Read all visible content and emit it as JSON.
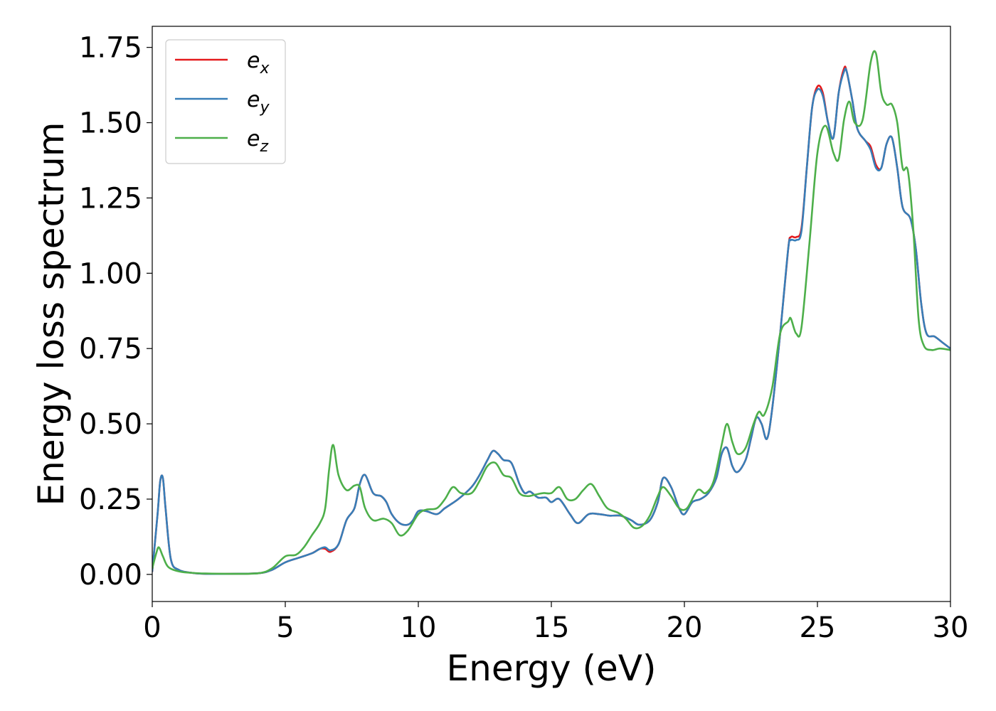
{
  "chart_data": {
    "type": "line",
    "title": "",
    "xlabel": "Energy (eV)",
    "ylabel": "Energy loss spectrum",
    "xlim": [
      0,
      30
    ],
    "ylim": [
      -0.09,
      1.82
    ],
    "xticks": [
      0,
      5,
      10,
      15,
      20,
      25,
      30
    ],
    "xtick_labels": [
      "0",
      "5",
      "10",
      "15",
      "20",
      "25",
      "30"
    ],
    "yticks": [
      0,
      0.25,
      0.5,
      0.75,
      1.0,
      1.25,
      1.5,
      1.75
    ],
    "ytick_labels": [
      "0.00",
      "0.25",
      "0.50",
      "0.75",
      "1.00",
      "1.25",
      "1.50",
      "1.75"
    ],
    "grid": false,
    "legend_position": "top-left",
    "series": [
      {
        "name": "e_x",
        "label_base": "e",
        "label_sub": "x",
        "color": "#e41a1c",
        "x": [
          0,
          0.2,
          0.3,
          0.4,
          0.5,
          0.7,
          1.0,
          1.5,
          2.0,
          3.0,
          4.0,
          4.5,
          5.0,
          5.5,
          6.0,
          6.3,
          6.5,
          6.7,
          7.0,
          7.3,
          7.6,
          7.8,
          8.0,
          8.3,
          8.6,
          8.8,
          9.0,
          9.3,
          9.6,
          9.8,
          10.0,
          10.3,
          10.7,
          11.0,
          11.5,
          12.0,
          12.3,
          12.6,
          12.8,
          13.0,
          13.2,
          13.5,
          13.8,
          14.0,
          14.2,
          14.5,
          14.8,
          15.0,
          15.3,
          15.7,
          16.0,
          16.4,
          16.8,
          17.2,
          17.6,
          18.0,
          18.3,
          18.7,
          19.0,
          19.2,
          19.5,
          19.8,
          20.0,
          20.3,
          20.6,
          20.9,
          21.2,
          21.4,
          21.6,
          21.8,
          22.0,
          22.3,
          22.5,
          22.7,
          22.9,
          23.1,
          23.3,
          23.6,
          23.9,
          24.0,
          24.2,
          24.4,
          24.6,
          24.8,
          25.0,
          25.2,
          25.4,
          25.6,
          25.8,
          26.0,
          26.1,
          26.3,
          26.5,
          26.8,
          27.0,
          27.2,
          27.4,
          27.6,
          27.8,
          28.0,
          28.2,
          28.5,
          28.7,
          28.9,
          29.1,
          29.4,
          29.7,
          30.0
        ],
        "y": [
          0.01,
          0.2,
          0.31,
          0.32,
          0.22,
          0.05,
          0.015,
          0.005,
          0.002,
          0.002,
          0.004,
          0.015,
          0.04,
          0.055,
          0.07,
          0.085,
          0.085,
          0.075,
          0.1,
          0.18,
          0.22,
          0.3,
          0.33,
          0.27,
          0.26,
          0.24,
          0.2,
          0.17,
          0.165,
          0.18,
          0.21,
          0.21,
          0.2,
          0.22,
          0.25,
          0.29,
          0.33,
          0.38,
          0.41,
          0.4,
          0.38,
          0.37,
          0.3,
          0.27,
          0.275,
          0.255,
          0.255,
          0.24,
          0.25,
          0.2,
          0.17,
          0.2,
          0.2,
          0.195,
          0.195,
          0.18,
          0.165,
          0.18,
          0.24,
          0.32,
          0.29,
          0.22,
          0.2,
          0.24,
          0.25,
          0.27,
          0.32,
          0.4,
          0.42,
          0.36,
          0.34,
          0.38,
          0.45,
          0.52,
          0.5,
          0.45,
          0.55,
          0.8,
          1.08,
          1.12,
          1.12,
          1.15,
          1.35,
          1.55,
          1.62,
          1.6,
          1.5,
          1.45,
          1.6,
          1.68,
          1.67,
          1.58,
          1.48,
          1.44,
          1.42,
          1.36,
          1.35,
          1.43,
          1.45,
          1.35,
          1.22,
          1.18,
          1.08,
          0.9,
          0.8,
          0.79,
          0.77,
          0.75
        ]
      },
      {
        "name": "e_y",
        "label_base": "e",
        "label_sub": "y",
        "color": "#377eb8",
        "x": [
          0,
          0.2,
          0.3,
          0.4,
          0.5,
          0.7,
          1.0,
          1.5,
          2.0,
          3.0,
          4.0,
          4.5,
          5.0,
          5.5,
          6.0,
          6.3,
          6.5,
          6.7,
          7.0,
          7.3,
          7.6,
          7.8,
          8.0,
          8.3,
          8.6,
          8.8,
          9.0,
          9.3,
          9.6,
          9.8,
          10.0,
          10.3,
          10.7,
          11.0,
          11.5,
          12.0,
          12.3,
          12.6,
          12.8,
          13.0,
          13.2,
          13.5,
          13.8,
          14.0,
          14.2,
          14.5,
          14.8,
          15.0,
          15.3,
          15.7,
          16.0,
          16.4,
          16.8,
          17.2,
          17.6,
          18.0,
          18.3,
          18.7,
          19.0,
          19.2,
          19.5,
          19.8,
          20.0,
          20.3,
          20.6,
          20.9,
          21.2,
          21.4,
          21.6,
          21.8,
          22.0,
          22.3,
          22.5,
          22.7,
          22.9,
          23.1,
          23.3,
          23.6,
          23.9,
          24.0,
          24.2,
          24.4,
          24.6,
          24.8,
          25.0,
          25.2,
          25.4,
          25.6,
          25.8,
          26.0,
          26.1,
          26.3,
          26.5,
          26.8,
          27.0,
          27.2,
          27.4,
          27.6,
          27.8,
          28.0,
          28.2,
          28.5,
          28.7,
          28.9,
          29.1,
          29.4,
          29.7,
          30.0
        ],
        "y": [
          0.01,
          0.2,
          0.31,
          0.32,
          0.22,
          0.05,
          0.015,
          0.005,
          0.002,
          0.002,
          0.004,
          0.015,
          0.04,
          0.055,
          0.07,
          0.085,
          0.09,
          0.08,
          0.1,
          0.18,
          0.22,
          0.3,
          0.33,
          0.27,
          0.26,
          0.24,
          0.2,
          0.17,
          0.165,
          0.18,
          0.21,
          0.21,
          0.2,
          0.22,
          0.25,
          0.29,
          0.33,
          0.38,
          0.41,
          0.4,
          0.38,
          0.37,
          0.3,
          0.27,
          0.275,
          0.255,
          0.255,
          0.24,
          0.25,
          0.2,
          0.17,
          0.2,
          0.2,
          0.195,
          0.195,
          0.18,
          0.165,
          0.18,
          0.24,
          0.32,
          0.29,
          0.22,
          0.2,
          0.24,
          0.25,
          0.27,
          0.32,
          0.4,
          0.42,
          0.36,
          0.34,
          0.38,
          0.45,
          0.52,
          0.5,
          0.45,
          0.55,
          0.8,
          1.08,
          1.11,
          1.11,
          1.14,
          1.35,
          1.55,
          1.61,
          1.59,
          1.5,
          1.45,
          1.6,
          1.67,
          1.67,
          1.58,
          1.48,
          1.44,
          1.41,
          1.35,
          1.35,
          1.43,
          1.45,
          1.35,
          1.22,
          1.18,
          1.08,
          0.9,
          0.8,
          0.79,
          0.77,
          0.75
        ]
      },
      {
        "name": "e_z",
        "label_base": "e",
        "label_sub": "z",
        "color": "#4daf4a",
        "x": [
          0,
          0.15,
          0.25,
          0.4,
          0.6,
          1.0,
          1.5,
          2.0,
          3.0,
          4.0,
          4.5,
          5.0,
          5.4,
          5.7,
          6.0,
          6.3,
          6.5,
          6.65,
          6.8,
          7.0,
          7.3,
          7.6,
          7.8,
          8.0,
          8.3,
          8.7,
          9.0,
          9.3,
          9.6,
          10.0,
          10.3,
          10.7,
          11.0,
          11.3,
          11.6,
          12.0,
          12.3,
          12.6,
          12.9,
          13.2,
          13.5,
          13.8,
          14.1,
          14.4,
          14.7,
          15.0,
          15.3,
          15.6,
          15.9,
          16.2,
          16.5,
          16.8,
          17.1,
          17.5,
          17.8,
          18.1,
          18.4,
          18.7,
          19.0,
          19.2,
          19.5,
          19.8,
          20.1,
          20.5,
          20.8,
          21.1,
          21.4,
          21.6,
          21.8,
          22.0,
          22.3,
          22.6,
          22.8,
          23.0,
          23.3,
          23.6,
          23.9,
          24.0,
          24.2,
          24.4,
          24.7,
          25.0,
          25.3,
          25.6,
          25.8,
          26.0,
          26.2,
          26.4,
          26.7,
          27.0,
          27.2,
          27.4,
          27.6,
          27.8,
          28.0,
          28.2,
          28.4,
          28.6,
          28.8,
          29.0,
          29.3,
          29.6,
          30.0
        ],
        "y": [
          0.02,
          0.07,
          0.09,
          0.06,
          0.025,
          0.01,
          0.005,
          0.003,
          0.002,
          0.004,
          0.02,
          0.06,
          0.065,
          0.09,
          0.13,
          0.17,
          0.22,
          0.35,
          0.43,
          0.33,
          0.28,
          0.295,
          0.29,
          0.22,
          0.18,
          0.185,
          0.17,
          0.13,
          0.145,
          0.2,
          0.215,
          0.22,
          0.25,
          0.29,
          0.27,
          0.27,
          0.31,
          0.36,
          0.37,
          0.33,
          0.32,
          0.27,
          0.26,
          0.265,
          0.27,
          0.27,
          0.29,
          0.25,
          0.25,
          0.28,
          0.3,
          0.26,
          0.22,
          0.205,
          0.185,
          0.155,
          0.16,
          0.195,
          0.26,
          0.29,
          0.26,
          0.22,
          0.22,
          0.28,
          0.27,
          0.31,
          0.43,
          0.5,
          0.44,
          0.4,
          0.42,
          0.5,
          0.54,
          0.53,
          0.62,
          0.8,
          0.84,
          0.85,
          0.8,
          0.82,
          1.1,
          1.4,
          1.49,
          1.4,
          1.38,
          1.51,
          1.57,
          1.5,
          1.51,
          1.7,
          1.73,
          1.6,
          1.56,
          1.56,
          1.5,
          1.35,
          1.34,
          1.15,
          0.85,
          0.76,
          0.745,
          0.75,
          0.745
        ]
      }
    ]
  }
}
